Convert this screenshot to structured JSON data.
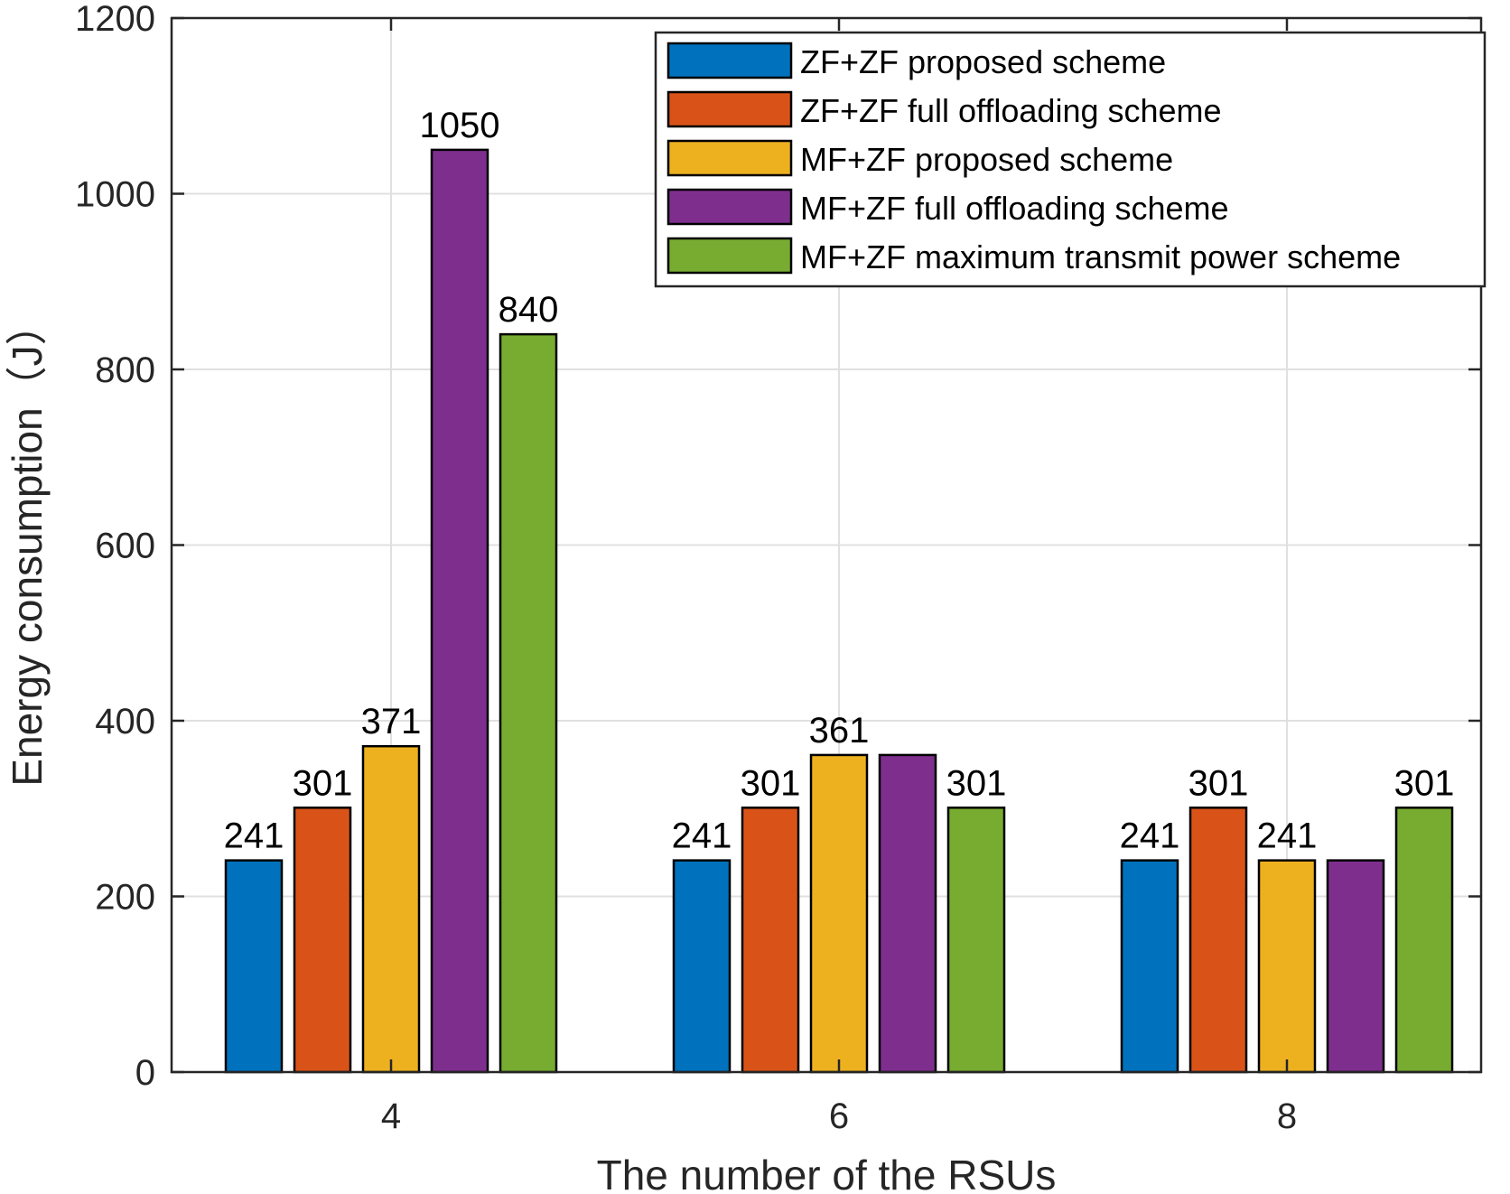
{
  "chart_data": {
    "type": "bar",
    "categories": [
      "4",
      "6",
      "8"
    ],
    "xlabel": "The number of the RSUs",
    "ylabel": "Energy consumption（J）",
    "ylim": [
      0,
      1200
    ],
    "yticks": [
      0,
      200,
      400,
      600,
      800,
      1000,
      1200
    ],
    "grid": true,
    "legend_position": "top-right",
    "series": [
      {
        "name": "ZF+ZF proposed scheme",
        "color": "#0072BD",
        "values": [
          241,
          241,
          241
        ]
      },
      {
        "name": "ZF+ZF full offloading scheme",
        "color": "#D95319",
        "values": [
          301,
          301,
          301
        ]
      },
      {
        "name": "MF+ZF proposed scheme",
        "color": "#EDB120",
        "values": [
          371,
          361,
          241
        ]
      },
      {
        "name": "MF+ZF full offloading scheme",
        "color": "#7E2F8E",
        "values": [
          1050,
          361,
          241
        ]
      },
      {
        "name": "MF+ZF maximum transmit power scheme",
        "color": "#77AC30",
        "values": [
          840,
          301,
          301
        ]
      }
    ],
    "data_labels": [
      [
        "241",
        "301",
        "371",
        "1050",
        "840"
      ],
      [
        "241",
        "301",
        "361",
        "",
        "301"
      ],
      [
        "241",
        "301",
        "241",
        "",
        "301"
      ]
    ]
  }
}
